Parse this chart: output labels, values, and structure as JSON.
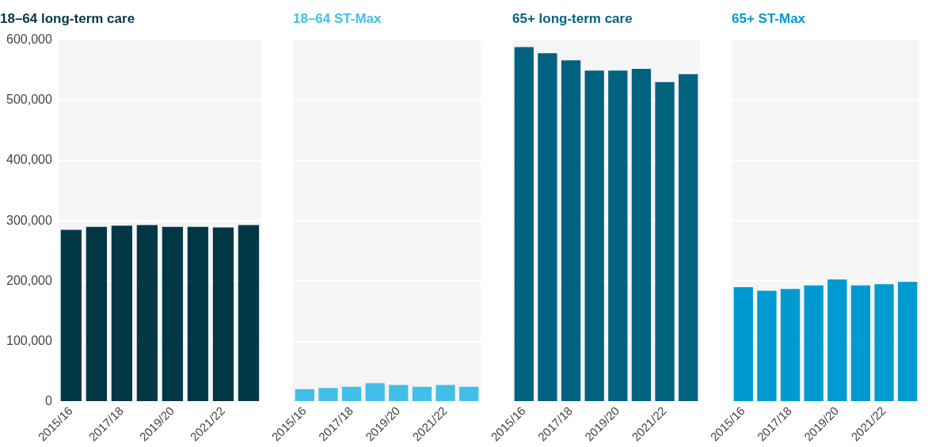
{
  "chart_data": [
    {
      "type": "bar",
      "title": "18–64 long-term care",
      "categories": [
        "2015/16",
        null,
        "2017/18",
        null,
        "2019/20",
        null,
        "2021/22",
        null
      ],
      "values": [
        285000,
        290000,
        292000,
        293000,
        290000,
        290000,
        289000,
        293000
      ],
      "color": "#023846",
      "ylim": [
        0,
        600000
      ],
      "yticks": [
        0,
        {
          "value": 100000,
          "label": "100,000"
        },
        {
          "value": 200000,
          "label": "200,000"
        },
        {
          "value": 300000,
          "label": "300,000"
        },
        {
          "value": 400000,
          "label": "400,000"
        },
        {
          "value": 500000,
          "label": "500,000"
        },
        {
          "value": 600000,
          "label": "600,000"
        }
      ],
      "grid": "y"
    },
    {
      "type": "bar",
      "title": "18–64 ST-Max",
      "categories": [
        "2015/16",
        null,
        "2017/18",
        null,
        "2019/20",
        null,
        "2021/22",
        null
      ],
      "values": [
        21000,
        23000,
        25000,
        31000,
        28000,
        25000,
        28000,
        25000
      ],
      "color": "#41bfe8",
      "ylim": [
        0,
        600000
      ],
      "yticks": [
        0,
        100000,
        200000,
        300000,
        400000,
        500000,
        600000
      ],
      "grid": "y",
      "tick_labels": "x"
    },
    {
      "type": "bar",
      "title": "65+ long-term care",
      "categories": [
        "2015/16",
        null,
        "2017/18",
        null,
        "2019/20",
        null,
        "2021/22",
        null
      ],
      "values": [
        588000,
        578000,
        566000,
        549000,
        549000,
        552000,
        530000,
        543000
      ],
      "color": "#00627f",
      "ylim": [
        0,
        600000
      ],
      "yticks": [
        0,
        100000,
        200000,
        300000,
        400000,
        500000,
        600000
      ],
      "grid": "y",
      "tick_labels": "x"
    },
    {
      "type": "bar",
      "title": "65+ ST-Max",
      "categories": [
        "2015/16",
        null,
        "2017/18",
        null,
        "2019/20",
        null,
        "2021/22",
        null
      ],
      "values": [
        190000,
        184000,
        187000,
        193000,
        203000,
        193000,
        195000,
        199000
      ],
      "color": "#009ad0",
      "ylim": [
        0,
        600000
      ],
      "yticks": [
        0,
        100000,
        200000,
        300000,
        400000,
        500000,
        600000
      ],
      "grid": "y",
      "tick_labels": "x"
    }
  ]
}
